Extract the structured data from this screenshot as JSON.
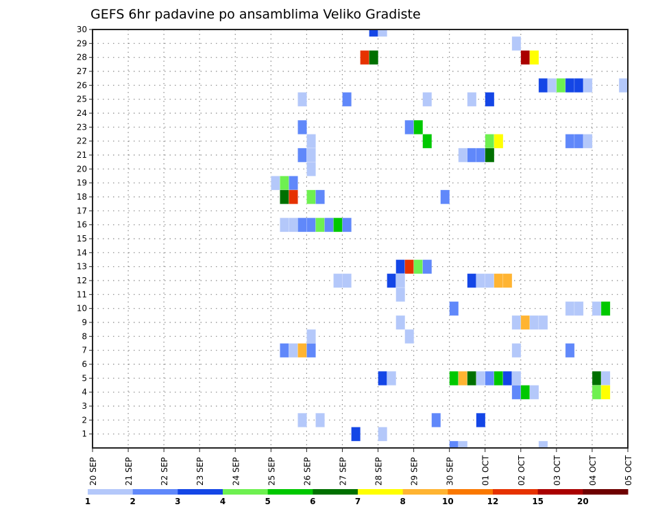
{
  "chart_data": {
    "type": "heatmap",
    "title": "GEFS 6hr padavine po ansamblima Veliko Gradiste",
    "xlabel": "",
    "ylabel": "",
    "x_tick_labels": [
      "20 SEP",
      "21 SEP",
      "22 SEP",
      "23 SEP",
      "24 SEP",
      "25 SEP",
      "26 SEP",
      "27 SEP",
      "28 SEP",
      "29 SEP",
      "30 SEP",
      "01 OCT",
      "02 OCT",
      "03 OCT",
      "04 OCT",
      "05 OCT"
    ],
    "x_unit": "6h step index from 20 SEP 00Z",
    "xlim": [
      0,
      60
    ],
    "y_tick_labels": [
      "1",
      "2",
      "3",
      "4",
      "5",
      "6",
      "7",
      "8",
      "9",
      "10",
      "11",
      "12",
      "13",
      "14",
      "15",
      "16",
      "17",
      "18",
      "19",
      "20",
      "21",
      "22",
      "23",
      "24",
      "25",
      "26",
      "27",
      "28",
      "29",
      "30"
    ],
    "ylim": [
      0,
      30
    ],
    "grid": true,
    "legend_placement": "bottom",
    "colorbar": {
      "levels": [
        "1",
        "2",
        "3",
        "4",
        "5",
        "6",
        "7",
        "8",
        "10",
        "12",
        "15",
        "20"
      ],
      "colors": [
        "#b4c8fa",
        "#6088fa",
        "#1446e6",
        "#6ef050",
        "#00c800",
        "#007000",
        "#ffff00",
        "#ffb432",
        "#fa7800",
        "#e63200",
        "#aa0000",
        "#6e0000"
      ]
    },
    "cells_format": [
      "time_step",
      "member",
      "color_bin"
    ],
    "cells": [
      [
        31,
        30,
        2
      ],
      [
        32,
        30,
        0
      ],
      [
        47,
        29,
        0
      ],
      [
        30,
        28,
        9
      ],
      [
        31,
        28,
        5
      ],
      [
        48,
        28,
        10
      ],
      [
        49,
        28,
        6
      ],
      [
        50,
        26,
        2
      ],
      [
        51,
        26,
        0
      ],
      [
        52,
        26,
        3
      ],
      [
        53,
        26,
        2
      ],
      [
        54,
        26,
        2
      ],
      [
        55,
        26,
        0
      ],
      [
        59,
        26,
        0
      ],
      [
        23,
        25,
        0
      ],
      [
        28,
        25,
        1
      ],
      [
        37,
        25,
        0
      ],
      [
        42,
        25,
        0
      ],
      [
        44,
        25,
        2
      ],
      [
        23,
        23,
        1
      ],
      [
        35,
        23,
        1
      ],
      [
        36,
        23,
        4
      ],
      [
        24,
        22,
        0
      ],
      [
        37,
        22,
        4
      ],
      [
        44,
        22,
        3
      ],
      [
        45,
        22,
        6
      ],
      [
        53,
        22,
        1
      ],
      [
        54,
        22,
        1
      ],
      [
        55,
        22,
        0
      ],
      [
        23,
        21,
        1
      ],
      [
        24,
        21,
        0
      ],
      [
        41,
        21,
        0
      ],
      [
        42,
        21,
        1
      ],
      [
        43,
        21,
        1
      ],
      [
        44,
        21,
        5
      ],
      [
        24,
        20,
        0
      ],
      [
        20,
        19,
        0
      ],
      [
        21,
        19,
        3
      ],
      [
        22,
        19,
        1
      ],
      [
        21,
        18,
        5
      ],
      [
        22,
        18,
        9
      ],
      [
        24,
        18,
        3
      ],
      [
        25,
        18,
        1
      ],
      [
        39,
        18,
        1
      ],
      [
        21,
        16,
        0
      ],
      [
        22,
        16,
        0
      ],
      [
        23,
        16,
        1
      ],
      [
        24,
        16,
        1
      ],
      [
        25,
        16,
        3
      ],
      [
        26,
        16,
        1
      ],
      [
        27,
        16,
        4
      ],
      [
        28,
        16,
        1
      ],
      [
        34,
        13,
        2
      ],
      [
        35,
        13,
        9
      ],
      [
        36,
        13,
        3
      ],
      [
        37,
        13,
        1
      ],
      [
        27,
        12,
        0
      ],
      [
        28,
        12,
        0
      ],
      [
        33,
        12,
        2
      ],
      [
        34,
        12,
        0
      ],
      [
        42,
        12,
        2
      ],
      [
        43,
        12,
        0
      ],
      [
        44,
        12,
        0
      ],
      [
        45,
        12,
        7
      ],
      [
        46,
        12,
        7
      ],
      [
        34,
        11,
        0
      ],
      [
        40,
        10,
        1
      ],
      [
        53,
        10,
        0
      ],
      [
        54,
        10,
        0
      ],
      [
        56,
        10,
        0
      ],
      [
        57,
        10,
        4
      ],
      [
        34,
        9,
        0
      ],
      [
        47,
        9,
        0
      ],
      [
        48,
        9,
        7
      ],
      [
        49,
        9,
        0
      ],
      [
        50,
        9,
        0
      ],
      [
        24,
        8,
        0
      ],
      [
        35,
        8,
        0
      ],
      [
        21,
        7,
        1
      ],
      [
        22,
        7,
        0
      ],
      [
        23,
        7,
        7
      ],
      [
        24,
        7,
        1
      ],
      [
        47,
        7,
        0
      ],
      [
        53,
        7,
        1
      ],
      [
        32,
        5,
        2
      ],
      [
        33,
        5,
        0
      ],
      [
        40,
        5,
        4
      ],
      [
        41,
        5,
        7
      ],
      [
        42,
        5,
        5
      ],
      [
        43,
        5,
        0
      ],
      [
        44,
        5,
        1
      ],
      [
        45,
        5,
        4
      ],
      [
        46,
        5,
        2
      ],
      [
        47,
        5,
        0
      ],
      [
        56,
        5,
        5
      ],
      [
        57,
        5,
        0
      ],
      [
        47,
        4,
        1
      ],
      [
        48,
        4,
        4
      ],
      [
        49,
        4,
        0
      ],
      [
        56,
        4,
        3
      ],
      [
        57,
        4,
        6
      ],
      [
        23,
        2,
        0
      ],
      [
        25,
        2,
        0
      ],
      [
        38,
        2,
        1
      ],
      [
        43,
        2,
        2
      ],
      [
        29,
        1,
        2
      ],
      [
        32,
        1,
        0
      ],
      [
        40,
        0,
        1
      ],
      [
        41,
        0,
        0
      ],
      [
        50,
        0,
        0
      ]
    ]
  }
}
